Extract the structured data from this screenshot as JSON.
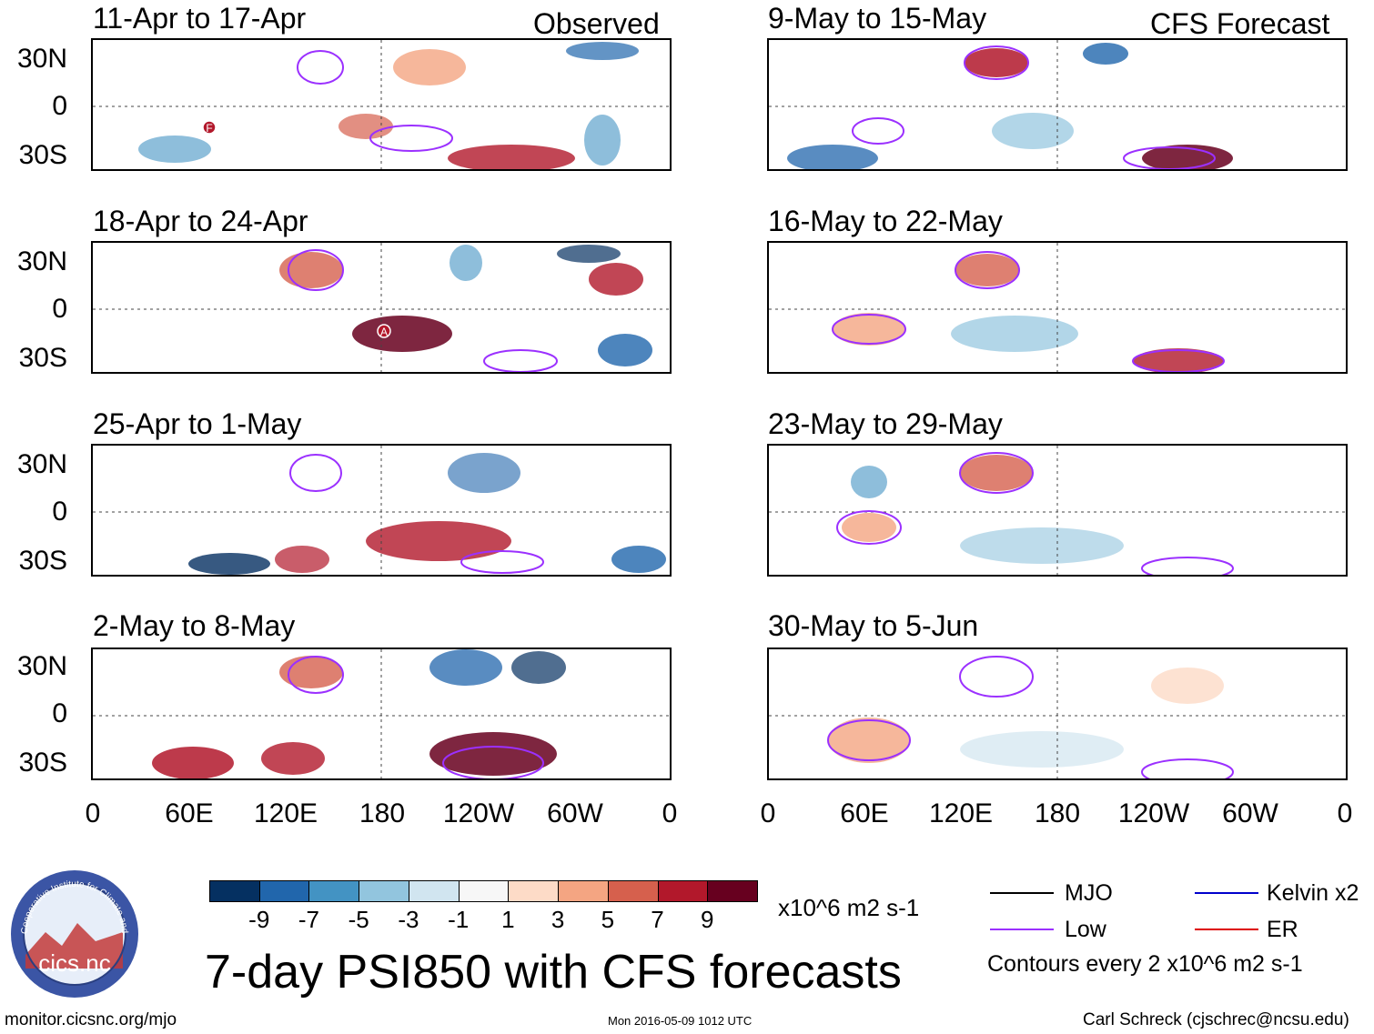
{
  "columns": {
    "left_label": "Observed",
    "right_label": "CFS Forecast"
  },
  "panels": [
    {
      "title": "11-Apr to 17-Apr"
    },
    {
      "title": "18-Apr to 24-Apr"
    },
    {
      "title": "25-Apr to 1-May"
    },
    {
      "title": "2-May to 8-May"
    },
    {
      "title": "9-May to 15-May"
    },
    {
      "title": "16-May to 22-May"
    },
    {
      "title": "23-May to 29-May"
    },
    {
      "title": "30-May to 5-Jun"
    }
  ],
  "storm_markers": [
    "F",
    "A"
  ],
  "lat_labels": [
    "30N",
    "0",
    "30S"
  ],
  "lon_labels": [
    "0",
    "60E",
    "120E",
    "180",
    "120W",
    "60W",
    "0"
  ],
  "colorbar": {
    "colors": [
      "#053061",
      "#2166ac",
      "#4393c3",
      "#92c5de",
      "#d1e5f0",
      "#f7f7f7",
      "#fddbc7",
      "#f4a582",
      "#d6604d",
      "#b2182b",
      "#67001f"
    ],
    "ticks": [
      "-9",
      "-7",
      "-5",
      "-3",
      "-1",
      "1",
      "3",
      "5",
      "7",
      "9"
    ],
    "units": "x10^6 m2 s-1"
  },
  "legend": {
    "items": [
      {
        "label": "MJO",
        "color": "#000000"
      },
      {
        "label": "Kelvin x2",
        "color": "#0000cc"
      },
      {
        "label": "Low",
        "color": "#9b30ff"
      },
      {
        "label": "ER",
        "color": "#dd0000"
      }
    ],
    "contour_note": "Contours every 2 x10^6 m2 s-1"
  },
  "main_title": "7-day PSI850 with CFS forecasts",
  "logo": {
    "text": "cics.nc",
    "ring_text": "Cooperative Institute for Climate and Satellites"
  },
  "footer": {
    "url": "monitor.cicsnc.org/mjo",
    "timestamp": "Mon 2016-05-09 1012 UTC",
    "author": "Carl Schreck (cjschrec@ncsu.edu)"
  }
}
